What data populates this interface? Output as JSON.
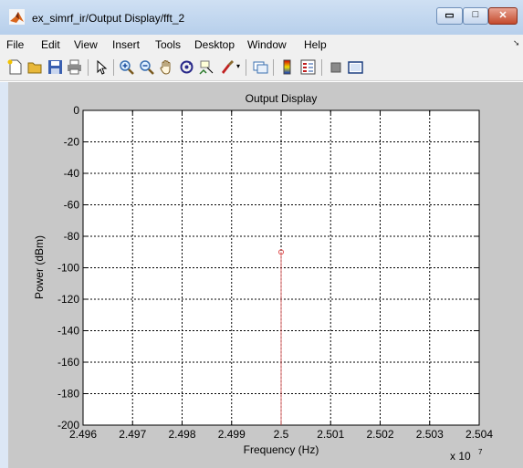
{
  "window": {
    "title": "ex_simrf_ir/Output Display/fft_2",
    "controls": {
      "minimize": "▭",
      "maximize": "□",
      "close": "✕"
    }
  },
  "menu": [
    "File",
    "Edit",
    "View",
    "Insert",
    "Tools",
    "Desktop",
    "Window",
    "Help"
  ],
  "toolbar": [
    "new-figure-icon",
    "open-file-icon",
    "save-icon",
    "print-icon",
    "select-arrow-icon",
    "zoom-in-icon",
    "zoom-out-icon",
    "pan-hand-icon",
    "rotate-3d-icon",
    "data-cursor-icon",
    "brush-icon",
    "link-plot-icon",
    "colorbar-icon",
    "legend-icon",
    "hide-plot-tools-icon",
    "show-plot-tools-icon"
  ],
  "chart_data": {
    "type": "scatter",
    "title": "Output Display",
    "xlabel": "Frequency (Hz)",
    "ylabel": "Power (dBm)",
    "x_exponent_label": "x 10",
    "x_exponent": "7",
    "xlim": [
      2.496,
      2.504
    ],
    "ylim": [
      -200,
      0
    ],
    "xticks": [
      "2.496",
      "2.497",
      "2.498",
      "2.499",
      "2.5",
      "2.501",
      "2.502",
      "2.503",
      "2.504"
    ],
    "yticks": [
      "0",
      "-20",
      "-40",
      "-60",
      "-80",
      "-100",
      "-120",
      "-140",
      "-160",
      "-180",
      "-200"
    ],
    "grid": true,
    "series": [
      {
        "stem": true,
        "color": "#e05050",
        "points": [
          {
            "x": 2.5,
            "y": -90
          }
        ]
      }
    ]
  }
}
